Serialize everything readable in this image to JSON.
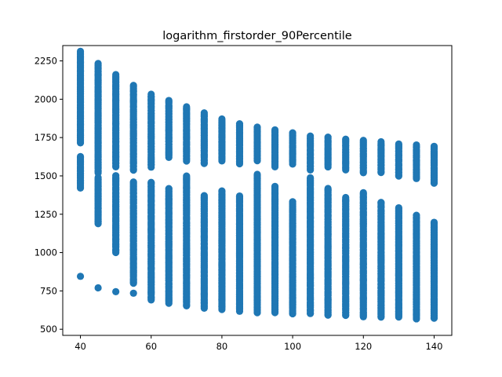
{
  "chart_data": {
    "type": "scatter",
    "title": "logarithm_firstorder_90Percentile",
    "xlabel": "",
    "ylabel": "",
    "xlim": [
      35,
      145
    ],
    "ylim": [
      460,
      2350
    ],
    "grid": false,
    "legend": "none",
    "marker_color": "#1f77b4",
    "x_ticks": [
      40,
      60,
      80,
      100,
      120,
      140
    ],
    "y_ticks": [
      500,
      750,
      1000,
      1250,
      1500,
      1750,
      2000,
      2250
    ],
    "columns": [
      {
        "x": 40,
        "upper": [
          1420,
          2310
        ],
        "upper_gaps": [
          [
            1630,
            1710
          ]
        ],
        "lower": [],
        "outliers": [
          845
        ]
      },
      {
        "x": 45,
        "upper": [
          1520,
          2230
        ],
        "upper_gaps": [],
        "lower": [
          1190,
          1490
        ],
        "outliers": [
          770
        ]
      },
      {
        "x": 50,
        "upper": [
          1560,
          2160
        ],
        "upper_gaps": [],
        "lower": [
          1000,
          1500
        ],
        "outliers": [
          745
        ]
      },
      {
        "x": 55,
        "upper": [
          1540,
          2090
        ],
        "upper_gaps": [],
        "lower": [
          800,
          1460
        ],
        "outliers": [
          735
        ]
      },
      {
        "x": 60,
        "upper": [
          1560,
          2030
        ],
        "upper_gaps": [],
        "lower": [
          690,
          1460
        ],
        "outliers": []
      },
      {
        "x": 65,
        "upper": [
          1620,
          1990
        ],
        "upper_gaps": [],
        "lower": [
          670,
          1420
        ],
        "outliers": []
      },
      {
        "x": 70,
        "upper": [
          1600,
          1950
        ],
        "upper_gaps": [],
        "lower": [
          650,
          1500
        ],
        "outliers": []
      },
      {
        "x": 75,
        "upper": [
          1580,
          1910
        ],
        "upper_gaps": [],
        "lower": [
          640,
          1370
        ],
        "outliers": []
      },
      {
        "x": 80,
        "upper": [
          1600,
          1870
        ],
        "upper_gaps": [],
        "lower": [
          630,
          1400
        ],
        "outliers": []
      },
      {
        "x": 85,
        "upper": [
          1580,
          1840
        ],
        "upper_gaps": [],
        "lower": [
          620,
          1370
        ],
        "outliers": []
      },
      {
        "x": 90,
        "upper": [
          1600,
          1820
        ],
        "upper_gaps": [],
        "lower": [
          610,
          1510
        ],
        "outliers": []
      },
      {
        "x": 95,
        "upper": [
          1560,
          1800
        ],
        "upper_gaps": [],
        "lower": [
          610,
          1430
        ],
        "outliers": []
      },
      {
        "x": 100,
        "upper": [
          1580,
          1780
        ],
        "upper_gaps": [],
        "lower": [
          600,
          1330
        ],
        "outliers": []
      },
      {
        "x": 105,
        "upper": [
          1540,
          1760
        ],
        "upper_gaps": [],
        "lower": [
          600,
          1490
        ],
        "outliers": []
      },
      {
        "x": 110,
        "upper": [
          1560,
          1750
        ],
        "upper_gaps": [],
        "lower": [
          590,
          1420
        ],
        "outliers": []
      },
      {
        "x": 115,
        "upper": [
          1540,
          1740
        ],
        "upper_gaps": [],
        "lower": [
          590,
          1360
        ],
        "outliers": []
      },
      {
        "x": 120,
        "upper": [
          1520,
          1730
        ],
        "upper_gaps": [],
        "lower": [
          580,
          1390
        ],
        "outliers": []
      },
      {
        "x": 125,
        "upper": [
          1520,
          1720
        ],
        "upper_gaps": [],
        "lower": [
          580,
          1330
        ],
        "outliers": []
      },
      {
        "x": 130,
        "upper": [
          1500,
          1710
        ],
        "upper_gaps": [],
        "lower": [
          580,
          1290
        ],
        "outliers": []
      },
      {
        "x": 135,
        "upper": [
          1480,
          1700
        ],
        "upper_gaps": [],
        "lower": [
          570,
          1240
        ],
        "outliers": []
      },
      {
        "x": 140,
        "upper": [
          1450,
          1690
        ],
        "upper_gaps": [],
        "lower": [
          570,
          1200
        ],
        "outliers": []
      }
    ]
  }
}
